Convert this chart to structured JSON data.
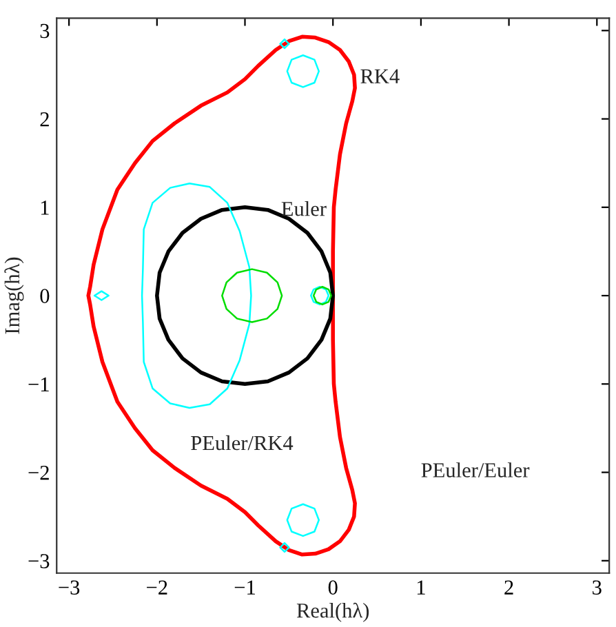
{
  "chart_data": {
    "type": "line",
    "xlabel": "Real(hλ)",
    "ylabel": "Imag(hλ)",
    "xlim": [
      -3.14,
      3.14
    ],
    "ylim": [
      -3.14,
      3.14
    ],
    "xticks": [
      {
        "value": -3,
        "label": "−3"
      },
      {
        "value": -2,
        "label": "−2"
      },
      {
        "value": -1,
        "label": "−1"
      },
      0,
      1,
      2,
      3
    ],
    "yticks": [
      {
        "value": -3,
        "label": "−3"
      },
      {
        "value": -2,
        "label": "−2"
      },
      {
        "value": -1,
        "label": "−1"
      },
      0,
      1,
      2,
      3
    ],
    "grid": false,
    "legend": false,
    "marker": "none",
    "line_style": "solid",
    "series": [
      {
        "color": "#ff0000",
        "x": [
          0,
          0,
          0.01,
          0.03,
          0.08,
          0.15,
          0.22,
          0.25,
          null,
          0.25,
          0.24,
          0.18,
          0.08,
          -0.05,
          -0.2,
          -0.35,
          -0.5,
          -0.65,
          -0.85,
          -1.0,
          -1.2,
          -1.5,
          -1.8,
          -2.05,
          -2.25,
          -2.45,
          -2.62,
          -2.72,
          -2.76,
          -2.78,
          null,
          -2.78,
          -2.76,
          -2.72,
          -2.62,
          -2.45,
          -2.25,
          -2.05,
          -1.8,
          -1.5,
          -1.2,
          -1.0,
          -0.85,
          -0.65,
          -0.5,
          -0.35,
          -0.2,
          -0.05,
          0.08,
          0.18,
          0.24,
          0.25,
          null,
          0.25,
          0.22,
          0.15,
          0.08,
          0.03,
          0.01,
          0,
          0
        ],
        "values": [
          0,
          0.5,
          1.0,
          1.2,
          1.6,
          1.95,
          2.2,
          2.35,
          null,
          2.35,
          2.5,
          2.65,
          2.78,
          2.87,
          2.92,
          2.93,
          2.88,
          2.78,
          2.6,
          2.45,
          2.3,
          2.15,
          1.95,
          1.75,
          1.5,
          1.2,
          0.75,
          0.35,
          0.1,
          0,
          null,
          0,
          -0.1,
          -0.35,
          -0.75,
          -1.2,
          -1.5,
          -1.75,
          -1.95,
          -2.15,
          -2.3,
          -2.45,
          -2.6,
          -2.78,
          -2.88,
          -2.93,
          -2.92,
          -2.87,
          -2.78,
          -2.65,
          -2.5,
          -2.35,
          null,
          -2.35,
          -2.2,
          -1.95,
          -1.6,
          -1.2,
          -1.0,
          -0.5,
          0
        ]
      },
      {
        "color": "#000000",
        "x": [
          0,
          -0.03,
          -0.13,
          -0.29,
          -0.5,
          -0.74,
          -1,
          -1.26,
          -1.5,
          -1.71,
          -1.87,
          -1.97,
          -2,
          null,
          -2,
          -1.97,
          -1.87,
          -1.71,
          -1.5,
          -1.26,
          -1,
          -0.74,
          -0.5,
          -0.29,
          -0.13,
          -0.03,
          0
        ],
        "values": [
          0,
          0.26,
          0.5,
          0.71,
          0.87,
          0.97,
          1,
          0.97,
          0.87,
          0.71,
          0.5,
          0.26,
          0,
          null,
          0,
          -0.26,
          -0.5,
          -0.71,
          -0.87,
          -0.97,
          -1,
          -0.97,
          -0.87,
          -0.71,
          -0.5,
          -0.26,
          0
        ]
      },
      {
        "color": "#00ffff",
        "x": [
          -0.93,
          -0.95,
          -1.06,
          -1.2,
          -1.4,
          -1.63,
          -1.85,
          -2.05,
          -2.15,
          -2.16,
          -2.17,
          null,
          -2.17,
          -2.16,
          -2.15,
          -2.05,
          -1.85,
          -1.63,
          -1.4,
          -1.2,
          -1.06,
          -0.95,
          -0.93,
          null,
          -0.05,
          -0.08,
          -0.15,
          -0.22,
          -0.25,
          null,
          -0.25,
          -0.22,
          -0.15,
          -0.08,
          -0.05,
          null,
          -0.16,
          -0.21,
          -0.34,
          -0.47,
          -0.52,
          null,
          -0.52,
          -0.47,
          -0.34,
          -0.21,
          -0.16,
          null,
          -0.16,
          -0.21,
          -0.34,
          -0.47,
          -0.52,
          null,
          -0.52,
          -0.47,
          -0.34,
          -0.21,
          -0.16
        ],
        "values": [
          0,
          0.32,
          0.73,
          1.05,
          1.23,
          1.27,
          1.22,
          1.05,
          0.75,
          0.3,
          0,
          null,
          0,
          -0.3,
          -0.75,
          -1.05,
          -1.22,
          -1.27,
          -1.23,
          -1.05,
          -0.73,
          -0.32,
          0,
          null,
          0,
          0.07,
          0.1,
          0.07,
          0,
          null,
          0,
          -0.07,
          -0.1,
          -0.07,
          0,
          null,
          2.54,
          2.67,
          2.72,
          2.67,
          2.54,
          null,
          2.54,
          2.41,
          2.36,
          2.41,
          2.54,
          null,
          -2.54,
          -2.41,
          -2.36,
          -2.41,
          -2.54,
          null,
          -2.54,
          -2.67,
          -2.72,
          -2.67,
          -2.54
        ]
      },
      {
        "color": "#00ffff",
        "x": [
          -0.5,
          -0.55,
          -0.6,
          null,
          -0.6,
          -0.55,
          -0.5,
          null,
          -0.5,
          -0.55,
          -0.6,
          null,
          -0.6,
          -0.55,
          -0.5,
          null,
          -2.55,
          -2.63,
          -2.71,
          null,
          -2.71,
          -2.63,
          -2.55
        ],
        "values": [
          2.85,
          2.9,
          2.85,
          null,
          2.85,
          2.8,
          2.85,
          null,
          -2.85,
          -2.8,
          -2.85,
          null,
          -2.85,
          -2.9,
          -2.85,
          null,
          0,
          0.05,
          0,
          null,
          0,
          -0.05,
          0
        ]
      },
      {
        "color": "#00dd00",
        "x": [
          -0.58,
          -0.63,
          -0.75,
          -0.92,
          -1.09,
          -1.21,
          -1.26,
          null,
          -1.26,
          -1.21,
          -1.09,
          -0.92,
          -0.75,
          -0.63,
          -0.58,
          null,
          -0.02,
          -0.05,
          -0.12,
          -0.19,
          -0.22,
          null,
          -0.22,
          -0.19,
          -0.12,
          -0.05,
          -0.02
        ],
        "values": [
          0,
          0.15,
          0.26,
          0.3,
          0.26,
          0.15,
          0,
          null,
          0,
          -0.15,
          -0.26,
          -0.3,
          -0.26,
          -0.15,
          0,
          null,
          0,
          0.07,
          0.1,
          0.07,
          0,
          null,
          0,
          -0.07,
          -0.1,
          -0.07,
          0
        ]
      }
    ],
    "annotations": [
      "RK4",
      "Euler",
      "PEuler/RK4",
      "PEuler/Euler"
    ]
  }
}
